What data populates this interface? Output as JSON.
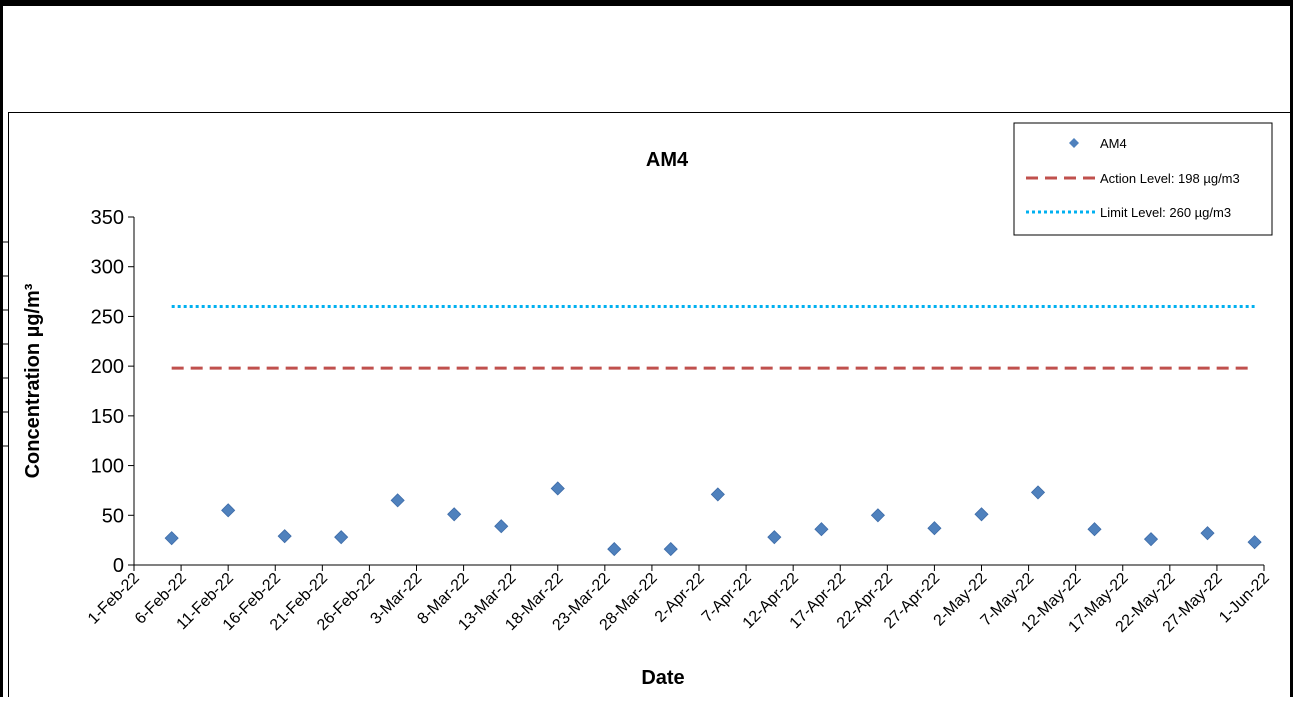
{
  "chart_data": {
    "type": "scatter",
    "title": "AM4",
    "xlabel": "Date",
    "ylabel": "Concentration µg/m³",
    "ylim": [
      0,
      350
    ],
    "yticks": [
      0,
      50,
      100,
      150,
      200,
      250,
      300,
      350
    ],
    "xlim": [
      "2022-02-01",
      "2022-06-01"
    ],
    "xtick_labels": [
      "1-Feb-22",
      "6-Feb-22",
      "11-Feb-22",
      "16-Feb-22",
      "21-Feb-22",
      "26-Feb-22",
      "3-Mar-22",
      "8-Mar-22",
      "13-Mar-22",
      "18-Mar-22",
      "23-Mar-22",
      "28-Mar-22",
      "2-Apr-22",
      "7-Apr-22",
      "12-Apr-22",
      "17-Apr-22",
      "22-Apr-22",
      "27-Apr-22",
      "2-May-22",
      "7-May-22",
      "12-May-22",
      "17-May-22",
      "22-May-22",
      "27-May-22",
      "1-Jun-22"
    ],
    "series": [
      {
        "name": "AM4",
        "marker": "diamond",
        "color": "#4F81BD",
        "points": [
          {
            "x": "2022-02-05",
            "y": 27
          },
          {
            "x": "2022-02-11",
            "y": 55
          },
          {
            "x": "2022-02-17",
            "y": 29
          },
          {
            "x": "2022-02-23",
            "y": 28
          },
          {
            "x": "2022-03-01",
            "y": 65
          },
          {
            "x": "2022-03-07",
            "y": 51
          },
          {
            "x": "2022-03-12",
            "y": 39
          },
          {
            "x": "2022-03-18",
            "y": 77
          },
          {
            "x": "2022-03-24",
            "y": 16
          },
          {
            "x": "2022-03-30",
            "y": 16
          },
          {
            "x": "2022-04-04",
            "y": 71
          },
          {
            "x": "2022-04-10",
            "y": 28
          },
          {
            "x": "2022-04-15",
            "y": 36
          },
          {
            "x": "2022-04-21",
            "y": 50
          },
          {
            "x": "2022-04-27",
            "y": 37
          },
          {
            "x": "2022-05-02",
            "y": 51
          },
          {
            "x": "2022-05-08",
            "y": 73
          },
          {
            "x": "2022-05-14",
            "y": 36
          },
          {
            "x": "2022-05-20",
            "y": 26
          },
          {
            "x": "2022-05-26",
            "y": 32
          },
          {
            "x": "2022-05-31",
            "y": 23
          }
        ]
      },
      {
        "name": "Action Level: 198 µg/m3",
        "style": "dashed",
        "color": "#C0504D",
        "points": [
          {
            "x": "2022-02-05",
            "y": 198
          },
          {
            "x": "2022-05-31",
            "y": 198
          }
        ]
      },
      {
        "name": "Limit Level: 260 µg/m3",
        "style": "dotted",
        "color": "#00B0F0",
        "points": [
          {
            "x": "2022-02-05",
            "y": 260
          },
          {
            "x": "2022-05-31",
            "y": 260
          }
        ]
      }
    ],
    "legend_position": "top-right",
    "grid": false
  }
}
